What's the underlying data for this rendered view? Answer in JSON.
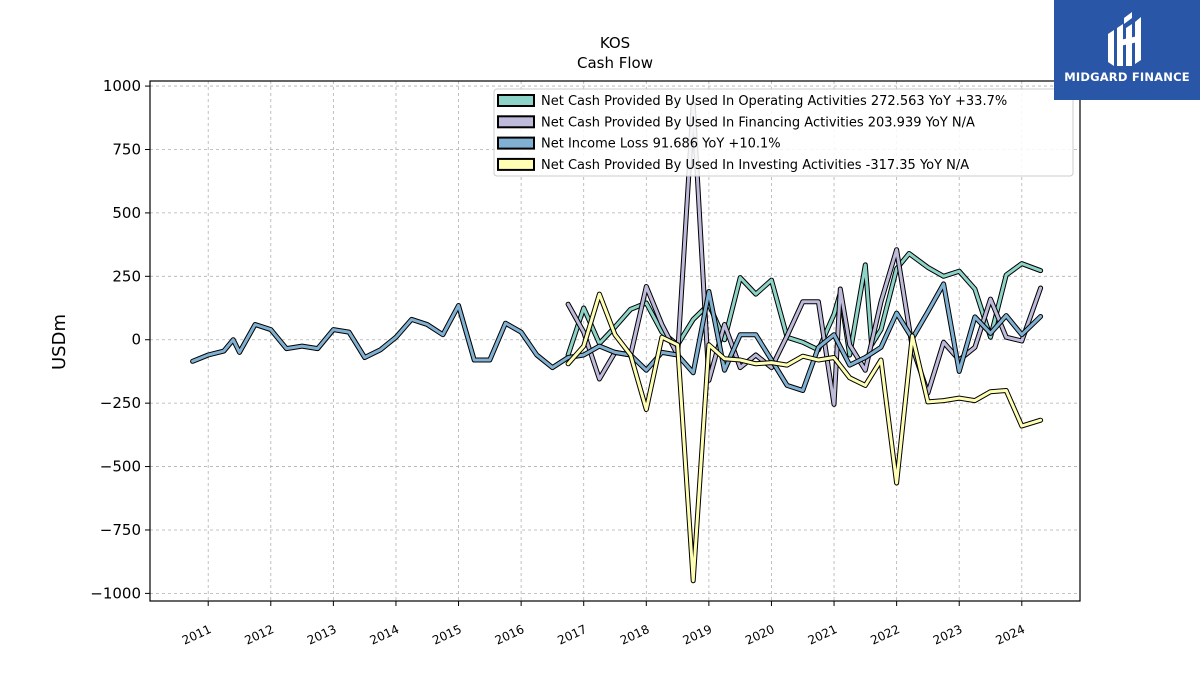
{
  "brand": {
    "name": "MIDGARD FINANCE",
    "bg": "#2a56a8"
  },
  "chart_data": {
    "type": "line",
    "title": "KOS",
    "subtitle": "Cash Flow",
    "ylabel": "USDm",
    "xlabel": "",
    "ylim": [
      -1030,
      1020
    ],
    "yticks": [
      1000,
      750,
      500,
      250,
      0,
      -250,
      -500,
      -750,
      -1000
    ],
    "ytick_labels": [
      "1000",
      "750",
      "500",
      "250",
      "0",
      "−250",
      "−500",
      "−750",
      "−1000"
    ],
    "xlim": [
      2010.07,
      2024.93
    ],
    "xticks": [
      2011,
      2012,
      2013,
      2014,
      2015,
      2016,
      2017,
      2018,
      2019,
      2020,
      2021,
      2022,
      2023,
      2024
    ],
    "grid": true,
    "legend_position": "top-right",
    "series": [
      {
        "name": "Net Cash Provided By Used In Operating Activities  272.563 YoY +33.7%",
        "color": "#8dd3c7",
        "points": [
          [
            2016.75,
            -60
          ],
          [
            2017.0,
            125
          ],
          [
            2017.25,
            -15
          ],
          [
            2017.5,
            50
          ],
          [
            2017.75,
            120
          ],
          [
            2018.0,
            145
          ],
          [
            2018.25,
            30
          ],
          [
            2018.5,
            -20
          ],
          [
            2018.75,
            80
          ],
          [
            2019.0,
            140
          ],
          [
            2019.25,
            0
          ],
          [
            2019.5,
            245
          ],
          [
            2019.75,
            180
          ],
          [
            2020.0,
            235
          ],
          [
            2020.25,
            10
          ],
          [
            2020.5,
            -10
          ],
          [
            2020.75,
            -40
          ],
          [
            2021.0,
            100
          ],
          [
            2021.1,
            185
          ],
          [
            2021.25,
            -60
          ],
          [
            2021.5,
            295
          ],
          [
            2021.6,
            -20
          ],
          [
            2021.75,
            40
          ],
          [
            2022.0,
            280
          ],
          [
            2022.2,
            340
          ],
          [
            2022.5,
            285
          ],
          [
            2022.75,
            250
          ],
          [
            2023.0,
            270
          ],
          [
            2023.25,
            200
          ],
          [
            2023.5,
            10
          ],
          [
            2023.75,
            255
          ],
          [
            2024.0,
            300
          ],
          [
            2024.3,
            272.563
          ]
        ]
      },
      {
        "name": "Net Cash Provided By Used In Financing Activities  203.939 YoY N/A",
        "color": "#bebada",
        "points": [
          [
            2016.75,
            140
          ],
          [
            2017.0,
            30
          ],
          [
            2017.25,
            -155
          ],
          [
            2017.5,
            -50
          ],
          [
            2017.75,
            -60
          ],
          [
            2018.0,
            210
          ],
          [
            2018.25,
            60
          ],
          [
            2018.5,
            -60
          ],
          [
            2018.75,
            930
          ],
          [
            2019.0,
            -160
          ],
          [
            2019.25,
            60
          ],
          [
            2019.5,
            -110
          ],
          [
            2019.75,
            -60
          ],
          [
            2020.0,
            -110
          ],
          [
            2020.25,
            15
          ],
          [
            2020.5,
            150
          ],
          [
            2020.75,
            150
          ],
          [
            2021.0,
            -255
          ],
          [
            2021.1,
            200
          ],
          [
            2021.25,
            -20
          ],
          [
            2021.5,
            -120
          ],
          [
            2021.75,
            150
          ],
          [
            2022.0,
            355
          ],
          [
            2022.25,
            -30
          ],
          [
            2022.5,
            -210
          ],
          [
            2022.75,
            -10
          ],
          [
            2023.0,
            -80
          ],
          [
            2023.25,
            -30
          ],
          [
            2023.5,
            160
          ],
          [
            2023.75,
            10
          ],
          [
            2024.0,
            -5
          ],
          [
            2024.3,
            203.939
          ]
        ]
      },
      {
        "name": "Net Income Loss  91.686 YoY +10.1%",
        "color": "#80b1d3",
        "points": [
          [
            2010.75,
            -85
          ],
          [
            2011.0,
            -60
          ],
          [
            2011.25,
            -45
          ],
          [
            2011.4,
            0
          ],
          [
            2011.5,
            -50
          ],
          [
            2011.75,
            60
          ],
          [
            2012.0,
            40
          ],
          [
            2012.25,
            -35
          ],
          [
            2012.5,
            -25
          ],
          [
            2012.75,
            -35
          ],
          [
            2013.0,
            40
          ],
          [
            2013.25,
            30
          ],
          [
            2013.5,
            -70
          ],
          [
            2013.75,
            -40
          ],
          [
            2014.0,
            10
          ],
          [
            2014.25,
            80
          ],
          [
            2014.5,
            60
          ],
          [
            2014.75,
            20
          ],
          [
            2015.0,
            135
          ],
          [
            2015.25,
            -80
          ],
          [
            2015.5,
            -80
          ],
          [
            2015.75,
            65
          ],
          [
            2016.0,
            30
          ],
          [
            2016.25,
            -60
          ],
          [
            2016.5,
            -110
          ],
          [
            2016.75,
            -70
          ],
          [
            2017.0,
            -60
          ],
          [
            2017.25,
            -25
          ],
          [
            2017.5,
            -50
          ],
          [
            2017.75,
            -60
          ],
          [
            2018.0,
            -120
          ],
          [
            2018.25,
            -50
          ],
          [
            2018.5,
            -60
          ],
          [
            2018.75,
            -130
          ],
          [
            2019.0,
            190
          ],
          [
            2019.25,
            -120
          ],
          [
            2019.5,
            20
          ],
          [
            2019.75,
            20
          ],
          [
            2020.0,
            -80
          ],
          [
            2020.25,
            -180
          ],
          [
            2020.5,
            -200
          ],
          [
            2020.75,
            -30
          ],
          [
            2021.0,
            20
          ],
          [
            2021.25,
            -100
          ],
          [
            2021.5,
            -70
          ],
          [
            2021.75,
            -30
          ],
          [
            2022.0,
            105
          ],
          [
            2022.25,
            5
          ],
          [
            2022.5,
            110
          ],
          [
            2022.75,
            220
          ],
          [
            2023.0,
            -125
          ],
          [
            2023.25,
            90
          ],
          [
            2023.5,
            25
          ],
          [
            2023.75,
            95
          ],
          [
            2024.0,
            20
          ],
          [
            2024.3,
            91.686
          ]
        ]
      },
      {
        "name": "Net Cash Provided By Used In Investing Activities  -317.35 YoY N/A",
        "color": "#ffffb3",
        "points": [
          [
            2016.75,
            -95
          ],
          [
            2017.0,
            -25
          ],
          [
            2017.25,
            180
          ],
          [
            2017.5,
            20
          ],
          [
            2017.75,
            -60
          ],
          [
            2018.0,
            -275
          ],
          [
            2018.25,
            10
          ],
          [
            2018.5,
            -20
          ],
          [
            2018.75,
            -950
          ],
          [
            2019.0,
            -20
          ],
          [
            2019.25,
            -75
          ],
          [
            2019.5,
            -80
          ],
          [
            2019.75,
            -95
          ],
          [
            2020.0,
            -90
          ],
          [
            2020.25,
            -100
          ],
          [
            2020.5,
            -65
          ],
          [
            2020.75,
            -80
          ],
          [
            2021.0,
            -70
          ],
          [
            2021.25,
            -150
          ],
          [
            2021.5,
            -180
          ],
          [
            2021.75,
            -80
          ],
          [
            2022.0,
            -565
          ],
          [
            2022.25,
            15
          ],
          [
            2022.5,
            -245
          ],
          [
            2022.75,
            -240
          ],
          [
            2023.0,
            -230
          ],
          [
            2023.25,
            -240
          ],
          [
            2023.5,
            -205
          ],
          [
            2023.75,
            -200
          ],
          [
            2024.0,
            -340
          ],
          [
            2024.3,
            -317.35
          ]
        ]
      }
    ]
  }
}
